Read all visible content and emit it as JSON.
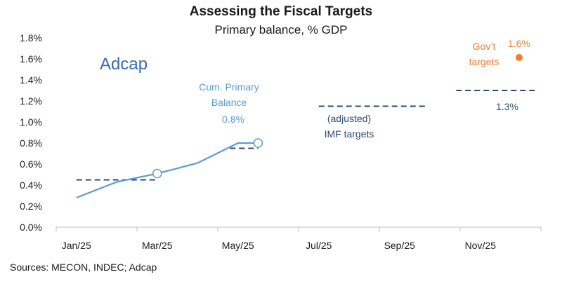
{
  "chart_data": {
    "type": "line",
    "title": "Assessing the Fiscal Targets",
    "subtitle": "Primary balance, % GDP",
    "logo": "Adcap",
    "source": "Sources: MECON, INDEC; Adcap",
    "ylim": [
      0,
      1.8
    ],
    "y_ticks": [
      "0.0%",
      "0.2%",
      "0.4%",
      "0.6%",
      "0.8%",
      "1.0%",
      "1.2%",
      "1.4%",
      "1.6%",
      "1.8%"
    ],
    "x_ticks": [
      "Jan/25",
      "Mar/25",
      "May/25",
      "Jul/25",
      "Sep/25",
      "Nov/25"
    ],
    "x_tick_months": [
      1,
      3,
      5,
      7,
      9,
      11
    ],
    "xlim": [
      0.5,
      12.5
    ],
    "series": [
      {
        "name": "Cum. Primary Balance",
        "color": "#5b9bd5",
        "x": [
          1,
          2,
          3,
          4,
          5,
          5.5
        ],
        "values": [
          0.28,
          0.43,
          0.51,
          0.61,
          0.8,
          0.8
        ],
        "highlight_points": [
          {
            "x": 3,
            "y": 0.51
          },
          {
            "x": 5.5,
            "y": 0.8
          }
        ]
      }
    ],
    "targets": {
      "name": "(adjusted) IMF targets",
      "color": "#2e4a72",
      "segments": [
        {
          "x_start": 1,
          "x_end": 3,
          "value": 0.45
        },
        {
          "x_start": 4.8,
          "x_end": 5.5,
          "value": 0.75
        },
        {
          "x_start": 7,
          "x_end": 9.7,
          "value": 1.15
        },
        {
          "x_start": 10.4,
          "x_end": 12.4,
          "value": 1.3
        }
      ]
    },
    "govt_target": {
      "x": 12.5,
      "value": 1.6,
      "color": "#ed7d31"
    },
    "annotations": {
      "cum_line1": "Cum. Primary",
      "cum_line2": "Balance",
      "cum_value": "0.8%",
      "imf_line1": "(adjusted)",
      "imf_line2": "IMF targets",
      "imf_value": "1.3%",
      "govt_line1": "Gov’t",
      "govt_line2": "targets",
      "govt_value": "1.6%"
    }
  }
}
